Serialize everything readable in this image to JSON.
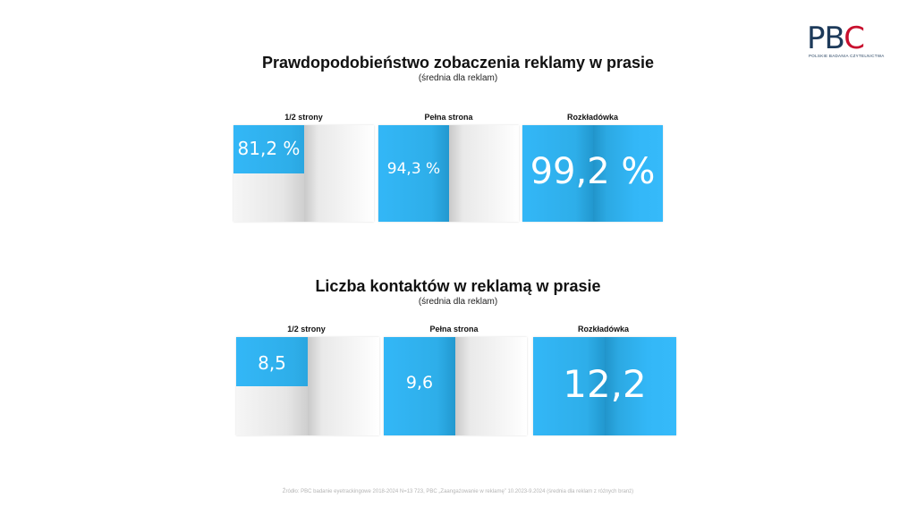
{
  "logo": {
    "letters_pb": "PB",
    "letters_c": "C",
    "subtitle": "POLSKIE BADANIA CZYTELNICTWA"
  },
  "section1": {
    "title": "Prawdopodobieństwo zobaczenia reklamy w prasie",
    "subtitle": "(średnia dla reklam)",
    "panels": [
      {
        "label": "1/2 strony",
        "value": "81,2 %"
      },
      {
        "label": "Pełna strona",
        "value": "94,3 %"
      },
      {
        "label": "Rozkładówka",
        "value": "99,2 %"
      }
    ]
  },
  "section2": {
    "title": "Liczba kontaktów w reklamą w prasie",
    "subtitle": "(średnia dla reklam)",
    "panels": [
      {
        "label": "1/2 strony",
        "value": "8,5"
      },
      {
        "label": "Pełna strona",
        "value": "9,6"
      },
      {
        "label": "Rozkładówka",
        "value": "12,2"
      }
    ]
  },
  "footnote": "Źródło: PBC badanie eyetrackingowe 2018-2024 N=13 723, PBC „Zaangażowanie w reklamę” 10.2023-9.2024 (średnia dla reklam z różnych branż)",
  "chart_data": [
    {
      "type": "bar",
      "title": "Prawdopodobieństwo zobaczenia reklamy w prasie",
      "subtitle": "(średnia dla reklam)",
      "categories": [
        "1/2 strony",
        "Pełna strona",
        "Rozkładówka"
      ],
      "values": [
        81.2,
        94.3,
        99.2
      ],
      "unit": "%"
    },
    {
      "type": "bar",
      "title": "Liczba kontaktów w reklamą w prasie",
      "subtitle": "(średnia dla reklam)",
      "categories": [
        "1/2 strony",
        "Pełna strona",
        "Rozkładówka"
      ],
      "values": [
        8.5,
        9.6,
        12.2
      ]
    }
  ]
}
